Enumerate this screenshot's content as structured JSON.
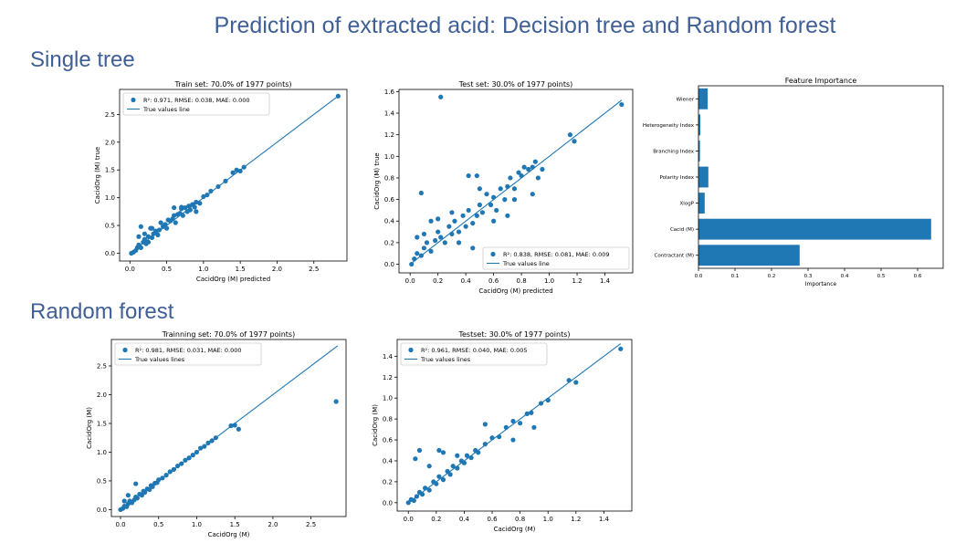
{
  "slide": {
    "title": "Prediction of extracted acid: Decision tree and Random forest",
    "section_single": "Single tree",
    "section_forest": "Random forest"
  },
  "colors": {
    "series": "#1f77b4",
    "heading": "#3f5f96"
  },
  "chart_data": [
    {
      "id": "dt_train",
      "type": "scatter",
      "title": "Train set: 70.0% of 1977 points)",
      "xlabel": "CacidOrg (M) predicted",
      "ylabel": "CacidOrg (M) true",
      "xlim": [
        -0.14,
        2.95
      ],
      "ylim": [
        -0.14,
        2.95
      ],
      "xticks": [
        "0.0",
        "0.5",
        "1.0",
        "1.5",
        "2.0",
        "2.5"
      ],
      "xtick_values": [
        0,
        0.5,
        1,
        1.5,
        2,
        2.5
      ],
      "yticks": [
        "0.0",
        "0.5",
        "1.0",
        "1.5",
        "2.0",
        "2.5"
      ],
      "ytick_values": [
        0,
        0.5,
        1,
        1.5,
        2,
        2.5
      ],
      "line": [
        [
          0,
          0
        ],
        [
          2.83,
          2.83
        ]
      ],
      "legend": {
        "position": "upper left",
        "scatter_label": "R²: 0.971, RMSE: 0.038, MAE: 0.000",
        "line_label": "True values line"
      },
      "points": [
        [
          0.02,
          0.0
        ],
        [
          0.05,
          0.02
        ],
        [
          0.08,
          0.05
        ],
        [
          0.1,
          0.1
        ],
        [
          0.12,
          0.15
        ],
        [
          0.15,
          0.1
        ],
        [
          0.18,
          0.2
        ],
        [
          0.2,
          0.25
        ],
        [
          0.22,
          0.17
        ],
        [
          0.25,
          0.3
        ],
        [
          0.28,
          0.45
        ],
        [
          0.3,
          0.28
        ],
        [
          0.32,
          0.35
        ],
        [
          0.35,
          0.4
        ],
        [
          0.38,
          0.33
        ],
        [
          0.4,
          0.42
        ],
        [
          0.42,
          0.55
        ],
        [
          0.45,
          0.48
        ],
        [
          0.48,
          0.52
        ],
        [
          0.5,
          0.45
        ],
        [
          0.52,
          0.6
        ],
        [
          0.55,
          0.58
        ],
        [
          0.58,
          0.62
        ],
        [
          0.6,
          0.68
        ],
        [
          0.62,
          0.55
        ],
        [
          0.65,
          0.7
        ],
        [
          0.68,
          0.72
        ],
        [
          0.7,
          0.8
        ],
        [
          0.72,
          0.68
        ],
        [
          0.75,
          0.82
        ],
        [
          0.78,
          0.75
        ],
        [
          0.8,
          0.85
        ],
        [
          0.82,
          0.78
        ],
        [
          0.85,
          0.88
        ],
        [
          0.88,
          0.83
        ],
        [
          0.9,
          0.92
        ],
        [
          0.95,
          0.9
        ],
        [
          1.0,
          1.02
        ],
        [
          1.05,
          1.05
        ],
        [
          1.1,
          1.12
        ],
        [
          1.2,
          1.2
        ],
        [
          1.3,
          1.3
        ],
        [
          1.4,
          1.45
        ],
        [
          1.45,
          1.5
        ],
        [
          1.5,
          1.48
        ],
        [
          1.55,
          1.55
        ],
        [
          0.15,
          0.48
        ],
        [
          0.3,
          0.45
        ],
        [
          0.6,
          0.82
        ],
        [
          0.7,
          0.83
        ],
        [
          0.12,
          0.3
        ],
        [
          0.2,
          0.35
        ],
        [
          0.25,
          0.2
        ],
        [
          0.9,
          0.75
        ],
        [
          2.83,
          2.83
        ]
      ]
    },
    {
      "id": "dt_test",
      "type": "scatter",
      "title": "Test set: 30.0% of 1977 points)",
      "xlabel": "CacidOrg (M) predicted",
      "ylabel": "CacidOrg (M) true",
      "xlim": [
        -0.08,
        1.6
      ],
      "ylim": [
        -0.08,
        1.62
      ],
      "xticks": [
        "0.0",
        "0.2",
        "0.4",
        "0.6",
        "0.8",
        "1.0",
        "1.2",
        "1.4"
      ],
      "xtick_values": [
        0,
        0.2,
        0.4,
        0.6,
        0.8,
        1.0,
        1.2,
        1.4
      ],
      "yticks": [
        "0.0",
        "0.2",
        "0.4",
        "0.6",
        "0.8",
        "1.0",
        "1.2",
        "1.4",
        "1.6"
      ],
      "ytick_values": [
        0,
        0.2,
        0.4,
        0.6,
        0.8,
        1.0,
        1.2,
        1.4,
        1.6
      ],
      "line": [
        [
          0,
          0
        ],
        [
          1.52,
          1.52
        ]
      ],
      "legend": {
        "position": "lower right",
        "scatter_label": "R²: 0.838, RMSE: 0.081, MAE: 0.009",
        "line_label": "True values line"
      },
      "points": [
        [
          0.01,
          0.0
        ],
        [
          0.03,
          0.05
        ],
        [
          0.05,
          0.1
        ],
        [
          0.08,
          0.08
        ],
        [
          0.1,
          0.15
        ],
        [
          0.12,
          0.2
        ],
        [
          0.15,
          0.12
        ],
        [
          0.18,
          0.22
        ],
        [
          0.2,
          0.3
        ],
        [
          0.22,
          0.25
        ],
        [
          0.25,
          0.2
        ],
        [
          0.28,
          0.35
        ],
        [
          0.3,
          0.28
        ],
        [
          0.32,
          0.4
        ],
        [
          0.35,
          0.3
        ],
        [
          0.38,
          0.45
        ],
        [
          0.4,
          0.35
        ],
        [
          0.42,
          0.5
        ],
        [
          0.45,
          0.38
        ],
        [
          0.48,
          0.45
        ],
        [
          0.5,
          0.55
        ],
        [
          0.52,
          0.48
        ],
        [
          0.55,
          0.65
        ],
        [
          0.58,
          0.55
        ],
        [
          0.6,
          0.62
        ],
        [
          0.62,
          0.5
        ],
        [
          0.65,
          0.7
        ],
        [
          0.68,
          0.6
        ],
        [
          0.7,
          0.72
        ],
        [
          0.72,
          0.8
        ],
        [
          0.75,
          0.7
        ],
        [
          0.78,
          0.85
        ],
        [
          0.8,
          0.82
        ],
        [
          0.82,
          0.9
        ],
        [
          0.85,
          0.88
        ],
        [
          0.88,
          0.9
        ],
        [
          0.9,
          0.95
        ],
        [
          0.95,
          0.88
        ],
        [
          1.15,
          1.2
        ],
        [
          1.18,
          1.14
        ],
        [
          1.52,
          1.48
        ],
        [
          0.08,
          0.66
        ],
        [
          0.22,
          1.55
        ],
        [
          0.42,
          0.82
        ],
        [
          0.48,
          0.82
        ],
        [
          0.5,
          0.7
        ],
        [
          0.3,
          0.48
        ],
        [
          0.2,
          0.42
        ],
        [
          0.15,
          0.4
        ],
        [
          0.6,
          0.4
        ],
        [
          0.7,
          0.45
        ],
        [
          0.75,
          0.6
        ],
        [
          0.05,
          0.25
        ],
        [
          0.1,
          0.28
        ],
        [
          0.35,
          0.2
        ],
        [
          0.45,
          0.15
        ],
        [
          0.88,
          0.65
        ],
        [
          0.92,
          0.8
        ]
      ]
    },
    {
      "id": "fi",
      "type": "bar",
      "orientation": "horizontal",
      "title": "Feature Importance",
      "xlabel": "Importance",
      "ylabel": "",
      "xlim": [
        0,
        0.67
      ],
      "categories": [
        "Contractant (M)",
        "Cacid (M)",
        "XlogP",
        "Polarity Index",
        "Branching Index",
        "Heterogeneity Index",
        "Wiener"
      ],
      "values": [
        0.277,
        0.637,
        0.017,
        0.027,
        0.004,
        0.005,
        0.025
      ],
      "xticks": [
        "0.0",
        "0.1",
        "0.2",
        "0.3",
        "0.4",
        "0.5",
        "0.6"
      ],
      "xtick_values": [
        0,
        0.1,
        0.2,
        0.3,
        0.4,
        0.5,
        0.6
      ]
    },
    {
      "id": "rf_train",
      "type": "scatter",
      "title": "Trainning set: 70.0% of 1977 points)",
      "xlabel": "CacidOrg (M)",
      "ylabel": "CacidOrg (M)",
      "xlim": [
        -0.12,
        2.96
      ],
      "ylim": [
        -0.12,
        2.96
      ],
      "xticks": [
        "0.0",
        "0.5",
        "1.0",
        "1.5",
        "2.0",
        "2.5"
      ],
      "xtick_values": [
        0,
        0.5,
        1,
        1.5,
        2,
        2.5
      ],
      "yticks": [
        "0.0",
        "0.5",
        "1.0",
        "1.5",
        "2.0",
        "2.5"
      ],
      "ytick_values": [
        0,
        0.5,
        1,
        1.5,
        2,
        2.5
      ],
      "line": [
        [
          0,
          0
        ],
        [
          2.85,
          2.85
        ]
      ],
      "legend": {
        "position": "upper left",
        "scatter_label": "R²: 0.981, RMSE: 0.031, MAE: 0.000",
        "line_label": "True values lines"
      },
      "points": [
        [
          0.0,
          0.0
        ],
        [
          0.03,
          0.02
        ],
        [
          0.05,
          0.06
        ],
        [
          0.08,
          0.05
        ],
        [
          0.1,
          0.1
        ],
        [
          0.12,
          0.15
        ],
        [
          0.15,
          0.12
        ],
        [
          0.18,
          0.17
        ],
        [
          0.2,
          0.22
        ],
        [
          0.22,
          0.2
        ],
        [
          0.25,
          0.27
        ],
        [
          0.28,
          0.25
        ],
        [
          0.3,
          0.32
        ],
        [
          0.32,
          0.3
        ],
        [
          0.35,
          0.36
        ],
        [
          0.38,
          0.35
        ],
        [
          0.4,
          0.42
        ],
        [
          0.42,
          0.4
        ],
        [
          0.45,
          0.46
        ],
        [
          0.48,
          0.47
        ],
        [
          0.5,
          0.52
        ],
        [
          0.55,
          0.55
        ],
        [
          0.6,
          0.6
        ],
        [
          0.65,
          0.66
        ],
        [
          0.7,
          0.7
        ],
        [
          0.75,
          0.76
        ],
        [
          0.8,
          0.8
        ],
        [
          0.85,
          0.86
        ],
        [
          0.9,
          0.9
        ],
        [
          0.95,
          0.95
        ],
        [
          1.0,
          1.0
        ],
        [
          1.05,
          1.07
        ],
        [
          1.1,
          1.1
        ],
        [
          1.15,
          1.16
        ],
        [
          1.2,
          1.2
        ],
        [
          1.25,
          1.25
        ],
        [
          1.45,
          1.46
        ],
        [
          1.5,
          1.47
        ],
        [
          1.55,
          1.4
        ],
        [
          0.1,
          0.25
        ],
        [
          0.2,
          0.45
        ],
        [
          0.05,
          0.15
        ],
        [
          2.83,
          1.88
        ]
      ]
    },
    {
      "id": "rf_test",
      "type": "scatter",
      "title": "Testset: 30.0% of 1977 points)",
      "xlabel": "CacidOrg (M)",
      "ylabel": "CacidOrg (M)",
      "xlim": [
        -0.08,
        1.6
      ],
      "ylim": [
        -0.08,
        1.56
      ],
      "xticks": [
        "0.0",
        "0.2",
        "0.4",
        "0.6",
        "0.8",
        "1.0",
        "1.2",
        "1.4"
      ],
      "xtick_values": [
        0,
        0.2,
        0.4,
        0.6,
        0.8,
        1.0,
        1.2,
        1.4
      ],
      "yticks": [
        "0.0",
        "0.2",
        "0.4",
        "0.6",
        "0.8",
        "1.0",
        "1.2",
        "1.4"
      ],
      "ytick_values": [
        0,
        0.2,
        0.4,
        0.6,
        0.8,
        1.0,
        1.2,
        1.4
      ],
      "line": [
        [
          0,
          0
        ],
        [
          1.52,
          1.52
        ]
      ],
      "legend": {
        "position": "upper left",
        "scatter_label": "R²: 0.961, RMSE: 0.040, MAE: 0.005",
        "line_label": "True values lines"
      },
      "points": [
        [
          0.0,
          0.0
        ],
        [
          0.02,
          0.03
        ],
        [
          0.04,
          0.02
        ],
        [
          0.06,
          0.06
        ],
        [
          0.08,
          0.1
        ],
        [
          0.1,
          0.08
        ],
        [
          0.12,
          0.14
        ],
        [
          0.15,
          0.12
        ],
        [
          0.18,
          0.2
        ],
        [
          0.2,
          0.18
        ],
        [
          0.22,
          0.25
        ],
        [
          0.25,
          0.22
        ],
        [
          0.28,
          0.3
        ],
        [
          0.3,
          0.27
        ],
        [
          0.32,
          0.35
        ],
        [
          0.35,
          0.33
        ],
        [
          0.38,
          0.4
        ],
        [
          0.4,
          0.38
        ],
        [
          0.42,
          0.45
        ],
        [
          0.45,
          0.43
        ],
        [
          0.48,
          0.5
        ],
        [
          0.5,
          0.48
        ],
        [
          0.55,
          0.56
        ],
        [
          0.6,
          0.62
        ],
        [
          0.65,
          0.63
        ],
        [
          0.7,
          0.72
        ],
        [
          0.75,
          0.78
        ],
        [
          0.8,
          0.76
        ],
        [
          0.85,
          0.85
        ],
        [
          0.88,
          0.86
        ],
        [
          0.95,
          0.95
        ],
        [
          1.0,
          0.98
        ],
        [
          1.15,
          1.17
        ],
        [
          1.2,
          1.15
        ],
        [
          1.52,
          1.47
        ],
        [
          0.08,
          0.5
        ],
        [
          0.05,
          0.42
        ],
        [
          0.25,
          0.48
        ],
        [
          0.35,
          0.45
        ],
        [
          0.55,
          0.75
        ],
        [
          0.75,
          0.6
        ],
        [
          0.9,
          0.72
        ],
        [
          0.15,
          0.35
        ],
        [
          0.22,
          0.5
        ]
      ]
    }
  ]
}
